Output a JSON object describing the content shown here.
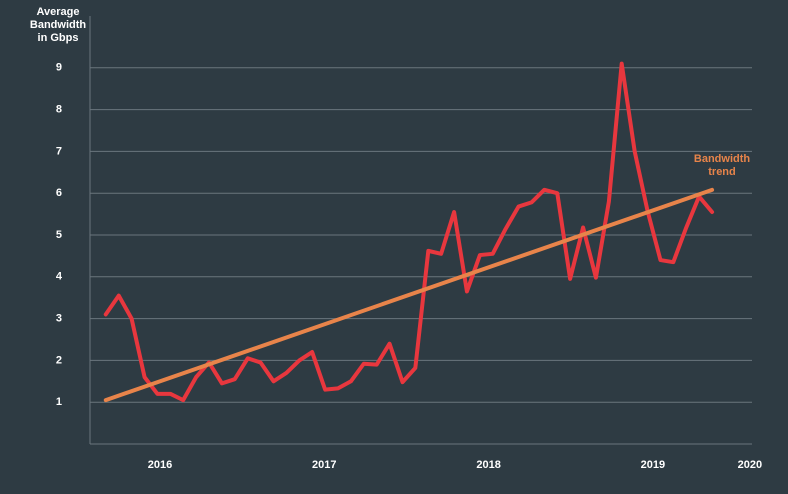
{
  "chart_data": {
    "type": "line",
    "ylabel": [
      "Average",
      "Bandwidth",
      "in Gbps"
    ],
    "x": [
      2015.67,
      2015.749,
      2015.827,
      2015.906,
      2015.984,
      2016.063,
      2016.141,
      2016.22,
      2016.298,
      2016.377,
      2016.455,
      2016.534,
      2016.612,
      2016.691,
      2016.769,
      2016.848,
      2016.926,
      2017.005,
      2017.083,
      2017.162,
      2017.24,
      2017.319,
      2017.397,
      2017.476,
      2017.554,
      2017.633,
      2017.711,
      2017.79,
      2017.868,
      2017.947,
      2018.025,
      2018.104,
      2018.182,
      2018.261,
      2018.339,
      2018.418,
      2018.496,
      2018.575,
      2018.653,
      2018.732,
      2018.81,
      2018.889,
      2018.967,
      2019.046,
      2019.124,
      2019.203,
      2019.281,
      2019.36
    ],
    "series": [
      {
        "color": "#e8373e",
        "values": [
          3.1,
          3.55,
          3.0,
          1.6,
          1.2,
          1.2,
          1.05,
          1.6,
          1.95,
          1.45,
          1.55,
          2.05,
          1.95,
          1.5,
          1.7,
          2.0,
          2.2,
          1.3,
          1.33,
          1.5,
          1.92,
          1.9,
          2.4,
          1.48,
          1.82,
          4.62,
          4.55,
          5.55,
          3.65,
          4.52,
          4.55,
          5.15,
          5.68,
          5.78,
          6.08,
          6.0,
          3.95,
          5.18,
          3.98,
          5.8,
          9.1,
          7.0,
          5.58,
          4.4,
          4.35,
          5.18,
          5.92,
          5.55
        ]
      },
      {
        "name": [
          "Bandwidth",
          "trend"
        ],
        "color": "#e8844a",
        "x": [
          2015.67,
          2019.36
        ],
        "values": [
          1.05,
          6.08
        ]
      }
    ],
    "xlim": [
      2015.574,
      2019.603
    ],
    "xticks": [
      2016,
      2017,
      2018,
      2019,
      {
        "value": 2019.59,
        "label": "2020"
      }
    ],
    "ylim": [
      0,
      10
    ],
    "yticks": [
      1,
      2,
      3,
      4,
      5,
      6,
      7,
      8,
      9
    ],
    "grid": true
  }
}
